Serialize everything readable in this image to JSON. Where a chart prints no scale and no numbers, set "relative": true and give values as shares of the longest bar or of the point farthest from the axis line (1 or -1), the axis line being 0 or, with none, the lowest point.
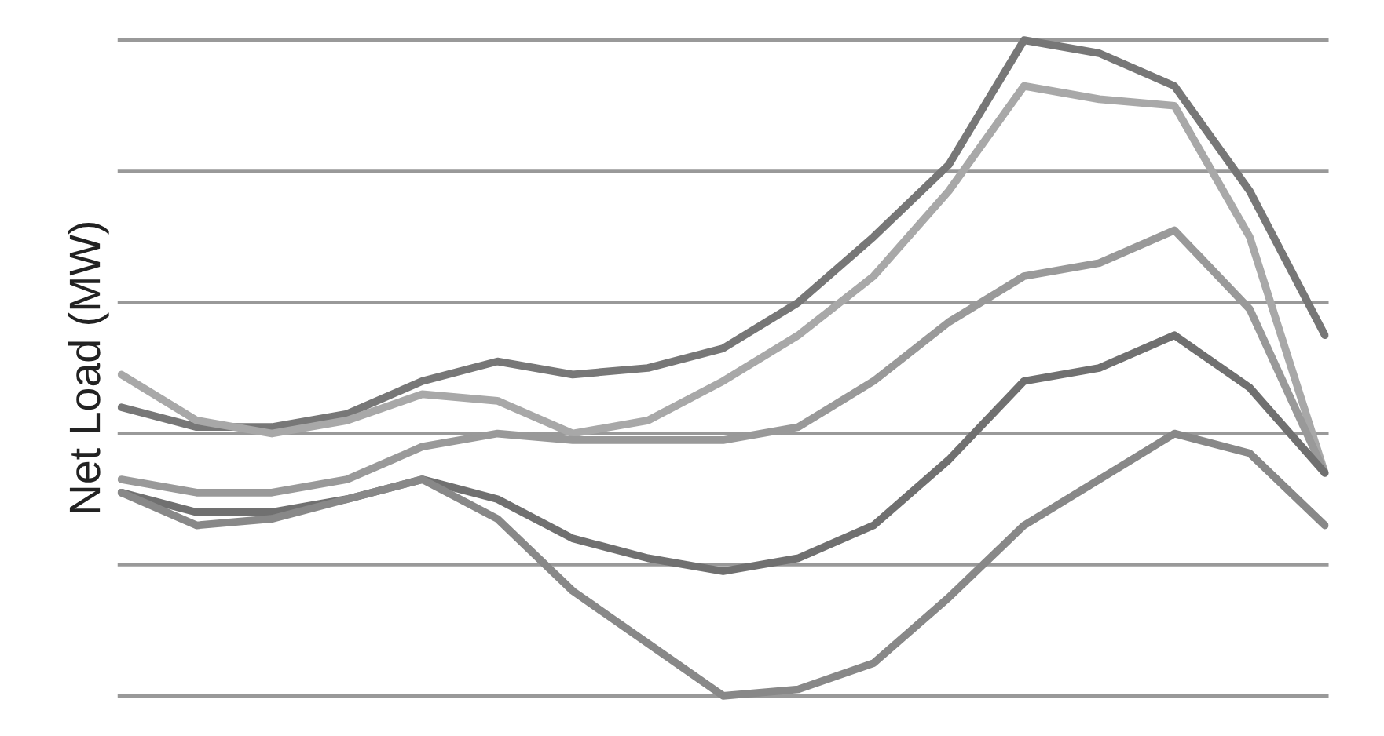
{
  "chart_data": {
    "type": "line",
    "relative": true,
    "ylabel": "Net Load (MW)",
    "grid": "y",
    "marker": "none",
    "line_style": "solid",
    "categories": [
      null,
      null,
      null,
      null,
      null,
      null,
      null,
      null,
      null,
      null,
      null,
      null,
      null,
      null,
      null,
      null,
      null
    ],
    "series": [
      {
        "color": "#777777",
        "values": [
          0.44,
          0.41,
          0.41,
          0.43,
          0.48,
          0.51,
          0.49,
          0.5,
          0.53,
          0.6,
          0.7,
          0.81,
          1.0,
          0.98,
          0.93,
          0.77,
          0.55
        ]
      },
      {
        "color": "#a8a8a8",
        "values": [
          0.49,
          0.42,
          0.4,
          0.42,
          0.46,
          0.45,
          0.4,
          0.42,
          0.48,
          0.55,
          0.64,
          0.77,
          0.93,
          0.91,
          0.9,
          0.7,
          0.34
        ]
      },
      {
        "color": "#999999",
        "values": [
          0.33,
          0.31,
          0.31,
          0.33,
          0.38,
          0.4,
          0.39,
          0.39,
          0.39,
          0.41,
          0.48,
          0.57,
          0.64,
          0.66,
          0.71,
          0.59,
          0.34
        ]
      },
      {
        "color": "#707070",
        "values": [
          0.31,
          0.28,
          0.28,
          0.3,
          0.33,
          0.3,
          0.24,
          0.21,
          0.19,
          0.21,
          0.26,
          0.36,
          0.48,
          0.5,
          0.55,
          0.47,
          0.34
        ]
      },
      {
        "color": "#888888",
        "values": [
          0.31,
          0.26,
          0.27,
          0.3,
          0.33,
          0.27,
          0.16,
          0.08,
          0.0,
          0.01,
          0.05,
          0.15,
          0.26,
          0.33,
          0.4,
          0.37,
          0.26
        ]
      }
    ]
  }
}
